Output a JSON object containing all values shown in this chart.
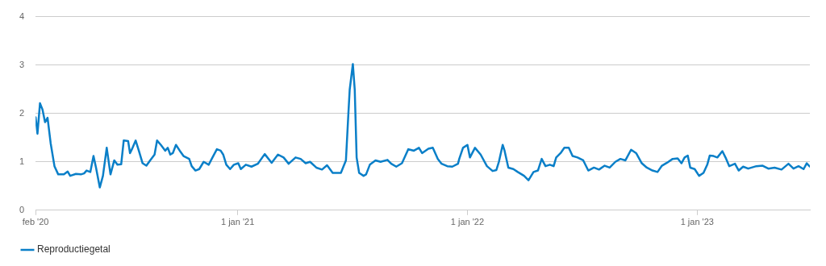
{
  "chart_data": {
    "type": "line",
    "x": [
      "2020-02-15",
      "2020-02-18",
      "2020-02-22",
      "2020-02-26",
      "2020-03-01",
      "2020-03-05",
      "2020-03-10",
      "2020-03-16",
      "2020-03-22",
      "2020-03-31",
      "2020-04-06",
      "2020-04-10",
      "2020-04-19",
      "2020-04-27",
      "2020-05-02",
      "2020-05-06",
      "2020-05-12",
      "2020-05-17",
      "2020-05-21",
      "2020-05-27",
      "2020-06-01",
      "2020-06-07",
      "2020-06-13",
      "2020-06-19",
      "2020-06-24",
      "2020-06-30",
      "2020-07-04",
      "2020-07-11",
      "2020-07-14",
      "2020-07-17",
      "2020-07-23",
      "2020-07-28",
      "2020-08-03",
      "2020-08-09",
      "2020-08-15",
      "2020-08-22",
      "2020-08-26",
      "2020-09-01",
      "2020-09-08",
      "2020-09-12",
      "2020-09-16",
      "2020-09-20",
      "2020-09-25",
      "2020-10-01",
      "2020-10-07",
      "2020-10-16",
      "2020-10-20",
      "2020-10-26",
      "2020-11-01",
      "2020-11-08",
      "2020-11-16",
      "2020-11-22",
      "2020-11-29",
      "2020-12-05",
      "2020-12-09",
      "2020-12-14",
      "2020-12-20",
      "2020-12-26",
      "2021-01-02",
      "2021-01-06",
      "2021-01-14",
      "2021-01-23",
      "2021-02-02",
      "2021-02-13",
      "2021-02-24",
      "2021-03-06",
      "2021-03-15",
      "2021-03-23",
      "2021-04-03",
      "2021-04-11",
      "2021-04-19",
      "2021-04-26",
      "2021-05-06",
      "2021-05-15",
      "2021-05-23",
      "2021-06-01",
      "2021-06-14",
      "2021-06-22",
      "2021-06-26",
      "2021-06-28",
      "2021-07-03",
      "2021-07-06",
      "2021-07-09",
      "2021-07-13",
      "2021-07-20",
      "2021-07-24",
      "2021-07-30",
      "2021-08-08",
      "2021-08-16",
      "2021-08-27",
      "2021-09-02",
      "2021-09-10",
      "2021-09-19",
      "2021-09-29",
      "2021-10-08",
      "2021-10-16",
      "2021-10-21",
      "2021-10-31",
      "2021-11-07",
      "2021-11-15",
      "2021-11-21",
      "2021-11-30",
      "2021-12-08",
      "2021-12-17",
      "2021-12-19",
      "2021-12-25",
      "2022-01-01",
      "2022-01-05",
      "2022-01-13",
      "2022-01-22",
      "2022-02-01",
      "2022-02-10",
      "2022-02-16",
      "2022-02-20",
      "2022-02-26",
      "2022-03-01",
      "2022-03-07",
      "2022-03-15",
      "2022-03-22",
      "2022-04-01",
      "2022-04-08",
      "2022-04-16",
      "2022-04-23",
      "2022-04-29",
      "2022-05-05",
      "2022-05-12",
      "2022-05-18",
      "2022-05-22",
      "2022-05-29",
      "2022-06-04",
      "2022-06-11",
      "2022-06-17",
      "2022-06-25",
      "2022-07-04",
      "2022-07-12",
      "2022-07-21",
      "2022-07-29",
      "2022-08-07",
      "2022-08-15",
      "2022-08-24",
      "2022-09-01",
      "2022-09-09",
      "2022-09-18",
      "2022-09-26",
      "2022-10-05",
      "2022-10-13",
      "2022-10-22",
      "2022-10-30",
      "2022-11-06",
      "2022-11-14",
      "2022-11-23",
      "2022-12-01",
      "2022-12-07",
      "2022-12-12",
      "2022-12-17",
      "2022-12-21",
      "2022-12-28",
      "2023-01-04",
      "2023-01-11",
      "2023-01-17",
      "2023-01-21",
      "2023-01-27",
      "2023-02-02",
      "2023-02-10",
      "2023-02-15",
      "2023-02-21",
      "2023-03-02",
      "2023-03-08",
      "2023-03-15",
      "2023-03-23",
      "2023-04-05",
      "2023-04-15",
      "2023-04-24",
      "2023-05-04",
      "2023-05-15",
      "2023-05-26",
      "2023-06-03",
      "2023-06-11",
      "2023-06-19",
      "2023-06-24",
      "2023-06-29"
    ],
    "series": [
      {
        "name": "Reproductiegetal",
        "color": "#0a7fc8",
        "values": [
          1.92,
          1.58,
          2.21,
          2.08,
          1.82,
          1.91,
          1.38,
          0.91,
          0.74,
          0.74,
          0.8,
          0.71,
          0.75,
          0.74,
          0.76,
          0.82,
          0.79,
          1.12,
          0.88,
          0.47,
          0.71,
          1.29,
          0.74,
          1.03,
          0.94,
          0.95,
          1.44,
          1.43,
          1.18,
          1.26,
          1.44,
          1.23,
          0.97,
          0.92,
          1.03,
          1.15,
          1.44,
          1.35,
          1.23,
          1.29,
          1.15,
          1.18,
          1.35,
          1.23,
          1.12,
          1.06,
          0.91,
          0.82,
          0.85,
          1.0,
          0.94,
          1.09,
          1.26,
          1.23,
          1.15,
          0.94,
          0.85,
          0.94,
          0.97,
          0.85,
          0.94,
          0.9,
          0.96,
          1.16,
          0.98,
          1.15,
          1.09,
          0.96,
          1.09,
          1.06,
          0.97,
          1.0,
          0.88,
          0.84,
          0.93,
          0.77,
          0.77,
          1.03,
          2.02,
          2.49,
          3.02,
          2.49,
          1.09,
          0.77,
          0.71,
          0.74,
          0.94,
          1.03,
          1.0,
          1.04,
          0.96,
          0.9,
          0.97,
          1.26,
          1.23,
          1.29,
          1.18,
          1.27,
          1.29,
          1.06,
          0.96,
          0.91,
          0.9,
          0.96,
          1.06,
          1.29,
          1.35,
          1.09,
          1.29,
          1.15,
          0.91,
          0.81,
          0.83,
          1.0,
          1.35,
          1.23,
          0.88,
          0.85,
          0.79,
          0.71,
          0.62,
          0.79,
          0.82,
          1.06,
          0.91,
          0.94,
          0.91,
          1.09,
          1.18,
          1.29,
          1.29,
          1.12,
          1.09,
          1.03,
          0.82,
          0.88,
          0.84,
          0.92,
          0.88,
          1.0,
          1.06,
          1.03,
          1.25,
          1.18,
          0.97,
          0.88,
          0.82,
          0.79,
          0.92,
          0.98,
          1.06,
          1.07,
          0.97,
          1.09,
          1.13,
          0.88,
          0.85,
          0.71,
          0.77,
          0.94,
          1.13,
          1.12,
          1.09,
          1.22,
          1.09,
          0.91,
          0.96,
          0.82,
          0.9,
          0.86,
          0.91,
          0.92,
          0.86,
          0.88,
          0.84,
          0.96,
          0.86,
          0.91,
          0.85,
          0.97,
          0.9
        ]
      }
    ],
    "xlim": [
      "2020-02-15",
      "2023-06-29"
    ],
    "xticks": [
      {
        "value": "2020-02-15",
        "label": "feb '20"
      },
      {
        "value": "2021-01-01",
        "label": "1 jan '21"
      },
      {
        "value": "2022-01-01",
        "label": "1 jan '22"
      },
      {
        "value": "2023-01-01",
        "label": "1 jan '23"
      }
    ],
    "ylim": [
      0,
      4
    ],
    "yticks": [
      0,
      1,
      2,
      3,
      4
    ],
    "grid": "y",
    "legend": "bottom left",
    "marker": "none",
    "line_style": "solid"
  }
}
